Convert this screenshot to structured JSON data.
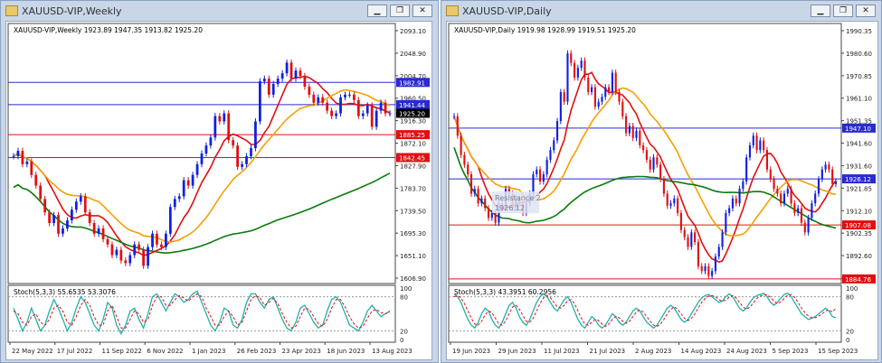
{
  "colors": {
    "bull": "#1020e0",
    "bear": "#e01010",
    "ma_fast": "#e01010",
    "ma_mid": "#f5a000",
    "ma_slow": "#0a7a0a",
    "stoch_main": "#20b0b0",
    "stoch_signal": "#e01010",
    "hline_blue": "#2a2ad0",
    "hline_red": "#e01010"
  },
  "icons": [
    "chart-window-icon",
    "minimize-icon",
    "restore-icon",
    "close-icon"
  ],
  "weekly": {
    "title": "XAUUSD-VIP,Weekly",
    "info": "XAUUSD-VIP,Weekly  1923.89 1947.35 1913.82 1925.20",
    "stoch_label": "Stoch(5,3,3) 55.6535 53.3076",
    "price_ticks": [
      "2093.10",
      "2048.90",
      "2004.70",
      "1960.50",
      "1916.30",
      "1872.10",
      "1827.90",
      "1783.70",
      "1739.50",
      "1695.30",
      "1651.10",
      "1606.90"
    ],
    "price_labels": [
      {
        "text": "1982.91",
        "value": 1982.91,
        "color": "#2a2ad0"
      },
      {
        "text": "1941.44",
        "value": 1941.44,
        "color": "#2a2ad0"
      },
      {
        "text": "1925.20",
        "value": 1925.2,
        "color": "#000000"
      },
      {
        "text": "1885.25",
        "value": 1885.25,
        "color": "#e01010"
      },
      {
        "text": "1842.45",
        "value": 1842.45,
        "color": "#e01010"
      }
    ],
    "stoch_ticks": [
      "100",
      "80",
      "20",
      "0"
    ],
    "date_ticks": [
      "22 May 2022",
      "17 Jul 2022",
      "11 Sep 2022",
      "6 Nov 2022",
      "1 Jan 2023",
      "26 Feb 2023",
      "23 Apr 2023",
      "18 Jun 2023",
      "13 Aug 2023"
    ]
  },
  "daily": {
    "title": "XAUUSD-VIP,Daily",
    "info": "XAUUSD-VIP,Daily  1919.98 1928.99 1919.51 1925.20",
    "stoch_label": "Stoch(5,3,3) 43.3951 60.2956",
    "annotation": [
      "Resistance 2",
      "1926.12"
    ],
    "price_ticks": [
      "1990.35",
      "1980.60",
      "1970.85",
      "1961.10",
      "1951.35",
      "1941.60",
      "1931.60",
      "1921.85",
      "1912.10",
      "1902.35",
      "1892.60",
      "1882.85"
    ],
    "price_labels": [
      {
        "text": "1947.10",
        "value": 1947.1,
        "color": "#2a2ad0"
      },
      {
        "text": "1926.12",
        "value": 1926.12,
        "color": "#2a2ad0"
      },
      {
        "text": "1907.08",
        "value": 1907.08,
        "color": "#e01010"
      },
      {
        "text": "1884.76",
        "value": 1884.76,
        "color": "#e01010"
      }
    ],
    "stoch_ticks": [
      "100",
      "80",
      "20",
      "0"
    ],
    "date_ticks": [
      "19 Jun 2023",
      "29 Jun 2023",
      "11 Jul 2023",
      "21 Jul 2023",
      "2 Aug 2023",
      "14 Aug 2023",
      "24 Aug 2023",
      "5 Sep 2023",
      "15 Sep 2023"
    ]
  },
  "chart_data": [
    {
      "type": "candlestick",
      "title": "XAUUSD-VIP,Weekly",
      "ylim": [
        1606.9,
        2093.1
      ],
      "last": {
        "open": 1923.89,
        "high": 1947.35,
        "low": 1913.82,
        "close": 1925.2
      },
      "horizontal_lines": [
        1982.91,
        1941.44,
        1885.25,
        1842.45
      ],
      "closes": [
        1845,
        1855,
        1830,
        1835,
        1810,
        1790,
        1765,
        1740,
        1720,
        1735,
        1700,
        1710,
        1725,
        1745,
        1760,
        1770,
        1740,
        1720,
        1700,
        1710,
        1690,
        1680,
        1660,
        1670,
        1650,
        1645,
        1660,
        1680,
        1670,
        1640,
        1675,
        1700,
        1680,
        1675,
        1700,
        1750,
        1765,
        1770,
        1800,
        1790,
        1810,
        1830,
        1850,
        1865,
        1880,
        1920,
        1910,
        1925,
        1875,
        1865,
        1825,
        1830,
        1845,
        1860,
        1910,
        1985,
        1990,
        1960,
        1980,
        1990,
        2000,
        2020,
        1990,
        2005,
        1995,
        1975,
        1960,
        1945,
        1955,
        1945,
        1930,
        1920,
        1925,
        1955,
        1960,
        1960,
        1950,
        1920,
        1925,
        1940,
        1900,
        1930,
        1945,
        1925,
        1925
      ],
      "stoch_k": [
        60,
        40,
        20,
        35,
        60,
        40,
        20,
        30,
        55,
        75,
        60,
        40,
        20,
        35,
        60,
        80,
        70,
        50,
        30,
        20,
        40,
        70,
        60,
        30,
        15,
        30,
        55,
        60,
        40,
        25,
        50,
        80,
        85,
        70,
        55,
        70,
        85,
        80,
        70,
        75,
        85,
        90,
        70,
        50,
        30,
        20,
        35,
        60,
        55,
        30,
        25,
        40,
        70,
        85,
        85,
        70,
        60,
        75,
        80,
        60,
        40,
        25,
        20,
        35,
        60,
        65,
        50,
        35,
        25,
        30,
        55,
        75,
        80,
        70,
        50,
        30,
        25,
        20,
        35,
        55,
        65,
        55,
        45,
        50,
        55
      ],
      "stoch_d": [
        55,
        50,
        35,
        30,
        45,
        50,
        35,
        30,
        40,
        60,
        65,
        55,
        35,
        30,
        45,
        65,
        75,
        65,
        45,
        30,
        30,
        55,
        65,
        45,
        25,
        25,
        40,
        55,
        50,
        35,
        40,
        65,
        80,
        80,
        65,
        65,
        75,
        82,
        78,
        72,
        80,
        85,
        80,
        60,
        45,
        30,
        30,
        45,
        55,
        45,
        30,
        35,
        55,
        75,
        82,
        78,
        65,
        70,
        77,
        68,
        50,
        35,
        25,
        28,
        45,
        60,
        58,
        45,
        33,
        28,
        40,
        60,
        75,
        75,
        62,
        45,
        32,
        25,
        28,
        42,
        55,
        58,
        52,
        50,
        53
      ]
    },
    {
      "type": "candlestick",
      "title": "XAUUSD-VIP,Daily",
      "ylim": [
        1882.85,
        1990.35
      ],
      "last": {
        "open": 1919.98,
        "high": 1928.99,
        "low": 1919.51,
        "close": 1925.2
      },
      "horizontal_lines": [
        1947.1,
        1926.12,
        1907.08,
        1884.76
      ],
      "closes": [
        1952,
        1944,
        1936,
        1932,
        1928,
        1920,
        1922,
        1916,
        1918,
        1914,
        1910,
        1912,
        1908,
        1916,
        1914,
        1922,
        1920,
        1914,
        1918,
        1916,
        1912,
        1916,
        1920,
        1928,
        1930,
        1925,
        1928,
        1934,
        1938,
        1942,
        1950,
        1962,
        1958,
        1978,
        1974,
        1968,
        1972,
        1975,
        1968,
        1962,
        1964,
        1956,
        1958,
        1960,
        1964,
        1962,
        1970,
        1962,
        1958,
        1952,
        1945,
        1948,
        1943,
        1946,
        1940,
        1938,
        1934,
        1930,
        1935,
        1932,
        1926,
        1920,
        1915,
        1916,
        1918,
        1912,
        1905,
        1902,
        1898,
        1904,
        1900,
        1890,
        1888,
        1890,
        1886,
        1888,
        1894,
        1898,
        1904,
        1912,
        1914,
        1918,
        1916,
        1922,
        1925,
        1935,
        1940,
        1944,
        1938,
        1942,
        1938,
        1930,
        1926,
        1922,
        1920,
        1916,
        1920,
        1922,
        1916,
        1912,
        1914,
        1908,
        1904,
        1910,
        1916,
        1920,
        1926,
        1930,
        1932,
        1930,
        1924,
        1925
      ],
      "stoch_k": [
        85,
        80,
        70,
        55,
        40,
        30,
        25,
        35,
        50,
        60,
        55,
        40,
        30,
        25,
        35,
        50,
        65,
        70,
        60,
        45,
        35,
        30,
        40,
        55,
        70,
        80,
        85,
        80,
        70,
        60,
        55,
        65,
        75,
        80,
        70,
        55,
        40,
        30,
        25,
        35,
        45,
        40,
        30,
        25,
        30,
        40,
        50,
        45,
        35,
        30,
        35,
        45,
        55,
        60,
        55,
        45,
        35,
        30,
        25,
        30,
        40,
        50,
        60,
        65,
        60,
        50,
        40,
        35,
        40,
        50,
        60,
        70,
        78,
        82,
        84,
        80,
        75,
        70,
        72,
        80,
        85,
        80,
        70,
        60,
        55,
        60,
        70,
        78,
        82,
        84,
        86,
        80,
        70,
        65,
        70,
        78,
        84,
        86,
        80,
        70,
        60,
        50,
        45,
        40,
        42,
        45,
        50,
        55,
        60,
        55,
        45,
        43
      ],
      "stoch_d": [
        80,
        82,
        78,
        68,
        55,
        42,
        32,
        30,
        37,
        48,
        55,
        52,
        42,
        32,
        30,
        37,
        50,
        62,
        65,
        58,
        47,
        37,
        35,
        42,
        55,
        68,
        78,
        82,
        78,
        70,
        62,
        60,
        65,
        73,
        75,
        68,
        55,
        42,
        32,
        30,
        35,
        40,
        38,
        32,
        28,
        32,
        40,
        45,
        43,
        37,
        33,
        37,
        45,
        53,
        57,
        53,
        45,
        37,
        30,
        28,
        32,
        40,
        50,
        58,
        62,
        58,
        50,
        42,
        38,
        42,
        50,
        60,
        70,
        77,
        81,
        82,
        80,
        75,
        72,
        74,
        79,
        82,
        78,
        70,
        62,
        58,
        62,
        69,
        77,
        81,
        84,
        83,
        79,
        72,
        68,
        71,
        77,
        83,
        84,
        79,
        70,
        60,
        52,
        46,
        43,
        43,
        46,
        50,
        55,
        57,
        53,
        60
      ]
    }
  ]
}
